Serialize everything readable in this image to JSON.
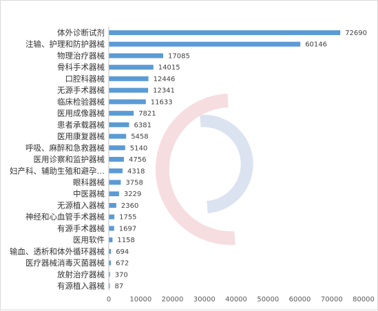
{
  "colors": {
    "bar": "#5b9bd5",
    "axis": "#bfbfbf",
    "watermark_red": "#e8a0a8",
    "watermark_blue": "#9bb0d8"
  },
  "chart_data": {
    "type": "bar",
    "orientation": "horizontal",
    "title": "",
    "xlabel": "",
    "ylabel": "",
    "xlim": [
      0,
      80000
    ],
    "xticks": [
      0,
      10000,
      20000,
      30000,
      40000,
      50000,
      60000,
      70000,
      80000
    ],
    "xtick_labels": [
      "0",
      "10000",
      "20000",
      "30000",
      "40000",
      "50000",
      "60000",
      "70000",
      "80000"
    ],
    "grid": false,
    "legend": "none",
    "categories": [
      "体外诊断试剂",
      "注输、护理和防护器械",
      "物理治疗器械",
      "骨科手术器械",
      "口腔科器械",
      "无源手术器械",
      "临床检验器械",
      "医用成像器械",
      "患者承载器械",
      "医用康复器械",
      "呼吸、麻醉和急救器械",
      "医用诊察和监护器械",
      "妇产科、辅助生殖和避孕…",
      "眼科器械",
      "中医器械",
      "无源植入器械",
      "神经和心血管手术器械",
      "有源手术器械",
      "医用软件",
      "输血、透析和体外循环器械",
      "医疗器械消毒灭菌器械",
      "放射治疗器械",
      "有源植入器械"
    ],
    "values": [
      72690,
      60146,
      17085,
      14015,
      12446,
      12341,
      11633,
      7821,
      6381,
      5458,
      5140,
      4756,
      4318,
      3758,
      3229,
      2360,
      1755,
      1697,
      1158,
      694,
      672,
      370,
      87
    ],
    "value_labels": [
      "72690",
      "60146",
      "17085",
      "14015",
      "12446",
      "12341",
      "11633",
      "7821",
      "6381",
      "5458",
      "5140",
      "4756",
      "4318",
      "3758",
      "3229",
      "2360",
      "1755",
      "1697",
      "1158",
      "694",
      "672",
      "370",
      "87"
    ]
  }
}
